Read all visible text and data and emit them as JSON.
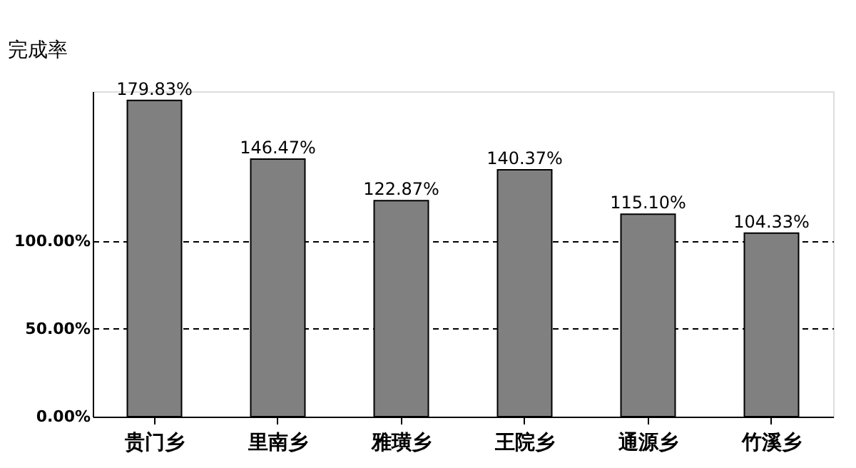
{
  "chart_data": {
    "type": "bar",
    "ylabel": "完成率",
    "categories": [
      "贵门乡",
      "里南乡",
      "雅璜乡",
      "王院乡",
      "通源乡",
      "竹溪乡"
    ],
    "values": [
      179.83,
      146.47,
      122.87,
      140.37,
      115.1,
      104.33
    ],
    "value_labels": [
      "179.83%",
      "146.47%",
      "122.87%",
      "140.37%",
      "115.10%",
      "104.33%"
    ],
    "color": "#808080",
    "ylim": [
      0,
      185
    ],
    "yticks": [
      {
        "value": 0,
        "label": "0.00%"
      },
      {
        "value": 50,
        "label": "50.00%"
      },
      {
        "value": 100,
        "label": "100.00%"
      }
    ],
    "grid": "y",
    "line_style": "dashed"
  }
}
